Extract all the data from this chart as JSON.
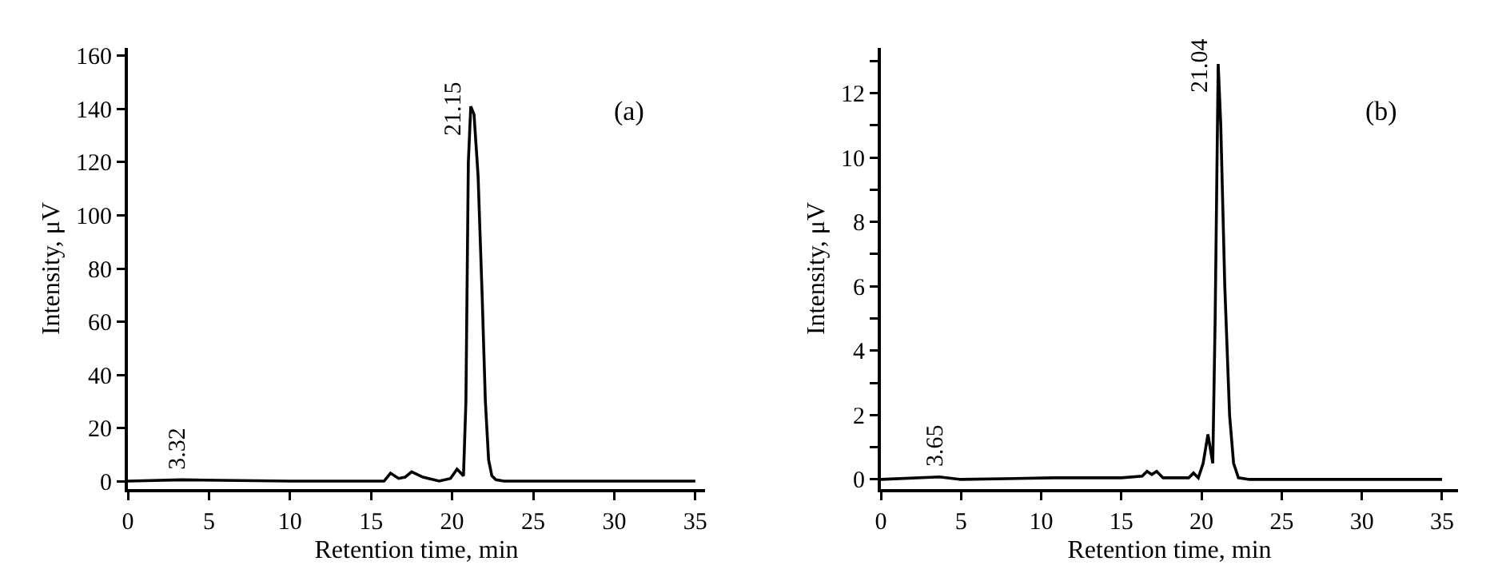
{
  "chart_data": [
    {
      "type": "line",
      "xlabel": "Retention time, min",
      "ylabel": "Intensity, μV",
      "annotations": [
        "(a)",
        {
          "text": "3.32",
          "x": 3.32,
          "y": 0.5
        },
        {
          "text": "21.15",
          "x": 21.15,
          "y": 141
        }
      ],
      "x": [
        0,
        3.32,
        10,
        15.8,
        16.2,
        16.7,
        17.1,
        17.5,
        18.2,
        19.2,
        19.9,
        20.3,
        20.7,
        20.85,
        21.0,
        21.15,
        21.35,
        21.6,
        21.85,
        22.05,
        22.25,
        22.45,
        22.7,
        23.2,
        35
      ],
      "series": [
        {
          "color": "#000000",
          "values": [
            0,
            0.5,
            0,
            0,
            3,
            1,
            1.5,
            3.5,
            1.5,
            0,
            1,
            4.5,
            2,
            30,
            120,
            141,
            138,
            115,
            70,
            30,
            8,
            2,
            0.5,
            0,
            0
          ]
        }
      ],
      "xlim": [
        0,
        35.6
      ],
      "ylim": [
        -3,
        163
      ],
      "xticks": [
        0,
        5,
        10,
        15,
        20,
        25,
        30,
        35
      ],
      "yticks": [
        0,
        20,
        40,
        60,
        80,
        100,
        120,
        140,
        160
      ],
      "grid": false,
      "marker": "none",
      "line_style": "solid"
    },
    {
      "type": "line",
      "xlabel": "Retention time, min",
      "ylabel": "Intensity, μV",
      "annotations": [
        "(b)",
        {
          "text": "3.65",
          "x": 3.65,
          "y": 0.08
        },
        {
          "text": "21.04",
          "x": 21.04,
          "y": 12.9
        }
      ],
      "x": [
        0,
        3.65,
        5,
        10.8,
        12.8,
        15,
        16.3,
        16.6,
        16.9,
        17.2,
        17.6,
        19.2,
        19.5,
        19.8,
        20.1,
        20.4,
        20.7,
        20.85,
        21.04,
        21.2,
        21.45,
        21.75,
        22.0,
        22.3,
        23,
        35
      ],
      "series": [
        {
          "color": "#000000",
          "values": [
            0,
            0.08,
            0,
            0.05,
            0.05,
            0.05,
            0.1,
            0.25,
            0.15,
            0.25,
            0.05,
            0.05,
            0.2,
            0.05,
            0.5,
            1.4,
            0.5,
            5,
            12.9,
            11,
            6,
            2,
            0.5,
            0.05,
            0,
            0
          ]
        }
      ],
      "xlim": [
        0,
        36
      ],
      "ylim": [
        -0.3,
        13.4
      ],
      "xticks": [
        0,
        5,
        10,
        15,
        20,
        25,
        30,
        35
      ],
      "yticks": [
        0,
        {
          "value": 1,
          "label": null
        },
        2,
        {
          "value": 3,
          "label": null
        },
        4,
        {
          "value": 5,
          "label": null
        },
        6,
        {
          "value": 7,
          "label": null
        },
        8,
        {
          "value": 9,
          "label": null
        },
        10,
        {
          "value": 11,
          "label": null
        },
        12,
        {
          "value": 13,
          "label": null
        }
      ],
      "grid": false,
      "marker": "none",
      "line_style": "solid"
    }
  ]
}
